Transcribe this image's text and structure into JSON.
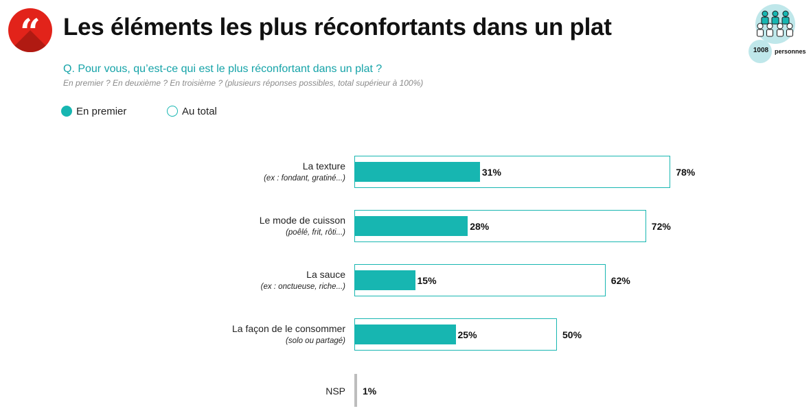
{
  "header": {
    "title": "Les éléments les plus réconfortants dans un plat",
    "quote_glyph": "“",
    "respondents": {
      "count": "1008",
      "label": "personnes"
    }
  },
  "question": {
    "prefix": "Q. Pour vous, qu’est-",
    "main": "ce qui est le plus réconfortant dans un plat ?",
    "sub": "En premier ? En deuxième ? En troisième ? (plusieurs réponses possibles, total supérieur à 100%)"
  },
  "colors": {
    "accent": "#17b6b1",
    "brand_red": "#e2231a",
    "nsp_gray": "#bdbdbd"
  },
  "chart_data": {
    "type": "bar",
    "orientation": "horizontal",
    "legend": [
      "En premier",
      "Au total"
    ],
    "categories": [
      {
        "label": "La texture",
        "sublabel": "(ex : fondant, gratiné...)"
      },
      {
        "label": "Le mode de cuisson",
        "sublabel": "(poêlé, frit, rôti...)"
      },
      {
        "label": "La sauce",
        "sublabel": "(ex : onctueuse, riche...)"
      },
      {
        "label": "La façon de le consommer",
        "sublabel": "(solo ou partagé)"
      },
      {
        "label": "NSP",
        "sublabel": ""
      }
    ],
    "series": [
      {
        "name": "En premier",
        "values": [
          31,
          28,
          15,
          25,
          null
        ],
        "labels": [
          "31%",
          "28%",
          "15%",
          "25%",
          ""
        ]
      },
      {
        "name": "Au total",
        "values": [
          78,
          72,
          62,
          50,
          1
        ],
        "labels": [
          "78%",
          "72%",
          "62%",
          "50%",
          "1%"
        ]
      }
    ],
    "unit": "%",
    "xlim": [
      0,
      100
    ]
  }
}
